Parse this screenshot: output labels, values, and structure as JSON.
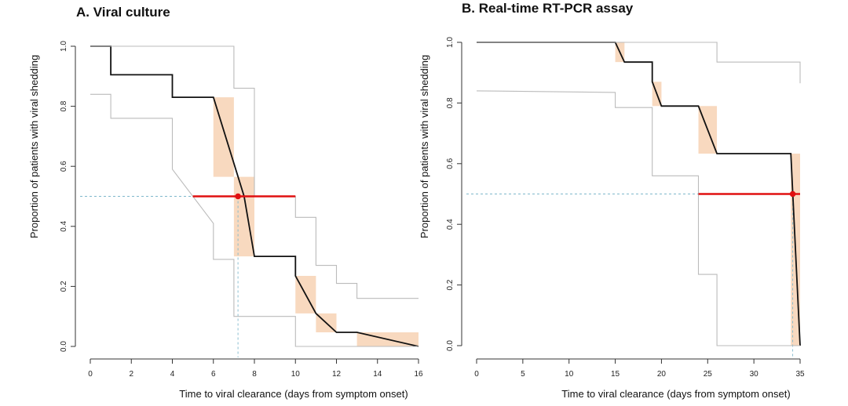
{
  "chart_data": [
    {
      "type": "line",
      "subtype": "kaplan-meier-step",
      "title": "A. Viral culture",
      "xlabel": "Time to viral clearance (days from symptom onset)",
      "ylabel": "Proportion of patients with viral shedding",
      "xlim": [
        0,
        16
      ],
      "ylim": [
        0,
        1
      ],
      "xticks": [
        "0",
        "2",
        "4",
        "6",
        "8",
        "10",
        "12",
        "14",
        "16"
      ],
      "yticks": [
        "0.0",
        "0.2",
        "0.4",
        "0.6",
        "0.8",
        "1.0"
      ],
      "grid": false,
      "colors": {
        "estimate": "#111111",
        "ci": "#bbbbbb",
        "interval": "#f8d9bf",
        "median": "#e01010",
        "reference": "#7fb8cc"
      },
      "series": [
        {
          "role": "estimate",
          "x": [
            0,
            1,
            1,
            4,
            4,
            6,
            7.5,
            8,
            10,
            10,
            11,
            12,
            13,
            16
          ],
          "y": [
            1.0,
            1.0,
            0.905,
            0.905,
            0.83,
            0.83,
            0.5,
            0.3,
            0.3,
            0.235,
            0.11,
            0.047,
            0.047,
            0.0
          ]
        },
        {
          "role": "ci-upper",
          "x": [
            0,
            7,
            7,
            8,
            8,
            10,
            10,
            11,
            11,
            12,
            12,
            13,
            13,
            16
          ],
          "y": [
            1.0,
            1.0,
            0.86,
            0.86,
            0.5,
            0.5,
            0.43,
            0.43,
            0.27,
            0.27,
            0.21,
            0.21,
            0.16,
            0.16
          ]
        },
        {
          "role": "ci-lower",
          "x": [
            0,
            1,
            1,
            4,
            4,
            6,
            6,
            7,
            7,
            10,
            10,
            16
          ],
          "y": [
            0.84,
            0.84,
            0.76,
            0.76,
            0.59,
            0.41,
            0.29,
            0.29,
            0.1,
            0.1,
            0.0,
            0.0
          ]
        }
      ],
      "intervals": [
        {
          "x0": 6,
          "x1": 7,
          "y0": 0.565,
          "y1": 0.83
        },
        {
          "x0": 7,
          "x1": 8,
          "y0": 0.3,
          "y1": 0.565
        },
        {
          "x0": 10,
          "x1": 11,
          "y0": 0.11,
          "y1": 0.235
        },
        {
          "x0": 11,
          "x1": 12,
          "y0": 0.047,
          "y1": 0.11
        },
        {
          "x0": 13,
          "x1": 16,
          "y0": 0.0,
          "y1": 0.047
        }
      ],
      "median": {
        "x": 7.2,
        "y": 0.5,
        "ci": [
          5,
          10
        ]
      }
    },
    {
      "type": "line",
      "subtype": "kaplan-meier-step",
      "title": "B. Real-time RT-PCR assay",
      "xlabel": "Time to viral clearance (days from symptom onset)",
      "ylabel": "Proportion of patients with viral shedding",
      "xlim": [
        0,
        35
      ],
      "ylim": [
        0,
        1
      ],
      "xticks": [
        "0",
        "5",
        "10",
        "15",
        "20",
        "25",
        "30",
        "35"
      ],
      "yticks": [
        "0.0",
        "0.2",
        "0.4",
        "0.6",
        "0.8",
        "1.0"
      ],
      "grid": false,
      "colors": {
        "estimate": "#111111",
        "ci": "#bbbbbb",
        "interval": "#f8d9bf",
        "median": "#e01010",
        "reference": "#7fb8cc"
      },
      "series": [
        {
          "role": "estimate",
          "x": [
            0,
            15,
            16,
            19,
            19,
            20,
            24,
            24,
            26,
            34,
            35
          ],
          "y": [
            1.0,
            1.0,
            0.935,
            0.935,
            0.87,
            0.79,
            0.79,
            0.79,
            0.633,
            0.633,
            0.0
          ]
        },
        {
          "role": "ci-upper",
          "x": [
            0,
            26,
            26,
            35,
            35
          ],
          "y": [
            1.0,
            1.0,
            0.935,
            0.935,
            0.865
          ]
        },
        {
          "role": "ci-lower",
          "x": [
            0,
            15,
            15,
            19,
            19,
            24,
            24,
            26,
            26,
            35
          ],
          "y": [
            0.84,
            0.835,
            0.785,
            0.785,
            0.56,
            0.56,
            0.235,
            0.235,
            0.0,
            0.0
          ]
        }
      ],
      "intervals": [
        {
          "x0": 15,
          "x1": 16,
          "y0": 0.935,
          "y1": 1.0
        },
        {
          "x0": 19,
          "x1": 20,
          "y0": 0.79,
          "y1": 0.87
        },
        {
          "x0": 24,
          "x1": 26,
          "y0": 0.633,
          "y1": 0.79
        },
        {
          "x0": 34,
          "x1": 35,
          "y0": 0.0,
          "y1": 0.633
        }
      ],
      "median": {
        "x": 34.2,
        "y": 0.5,
        "ci": [
          24,
          35
        ]
      }
    }
  ]
}
